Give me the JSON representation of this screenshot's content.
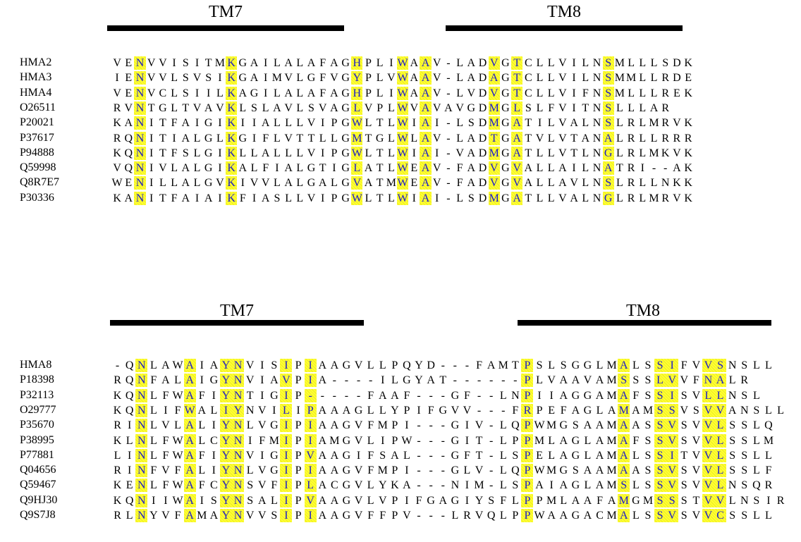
{
  "colors": {
    "highlight": "#ffff33",
    "highlight_text": "#1a1acc",
    "text": "#000000",
    "bar": "#000000"
  },
  "blocks": [
    {
      "tm_labels": [
        "TM7",
        "TM8"
      ],
      "rows": [
        {
          "name": "HMA2",
          "seq": "VENVVISITMKGAILALAFAGHPLIWAAV-LADVGTCLLVILNSMLLLSDK"
        },
        {
          "name": "HMA3",
          "seq": "IENVVLSVSIKGAIMVLGFVGYPLVWAAV-LADAGTCLLVILNSMMLLRDE"
        },
        {
          "name": "HMA4",
          "seq": "VENVCLSIILKAGILALAFAGHPLIWAAV-LVDVGTCLLVIFNSMLLLREK"
        },
        {
          "name": "O26511",
          "seq": "RVNTGLTVAVKLSLAVLSVAGLVPLWVAVAVGDMGLSLFVITNSLLLAR"
        },
        {
          "name": "P20021",
          "seq": "KANITFAIGIKIIALLLVIPGWLTLWIAI-LSDMGATILVALNSLRLMRVK"
        },
        {
          "name": "P37617",
          "seq": "RQNITIALGLKGIFLVTTLLGMTGLWLAV-LADTGATVLVTANALRLLRRR"
        },
        {
          "name": "P94888",
          "seq": "KQNITFSLGIKLLALLLVIPGWLTLWIAI-VADMGATLLVTLNGLRLMKVK"
        },
        {
          "name": "Q59998",
          "seq": "VQNIVLALGIKALFIALGTIGLATLWEAV-FADVGVALLAILNATRI--AK"
        },
        {
          "name": "Q8R7E7",
          "seq": "WENILLALGVKIVVLALGALGVATMWEAV-FADVGVALLAVLNSLRLLNKK"
        },
        {
          "name": "P30336",
          "seq": "KANITFAIAIKFIASLLVIPGWLTLWIAI-LSDMGATLLVALNGLRLMRVK"
        }
      ]
    },
    {
      "tm_labels": [
        "TM7",
        "TM8"
      ],
      "rows": [
        {
          "name": "HMA8",
          "seq": "-QNLAWAIAYNVISIPIAAGVLLPQYD---FAMTPSLSGGLMALSSIFVVSNSLL"
        },
        {
          "name": "P18398",
          "seq": "RQNFALAIGYNVIAVPIA----ILGYAT------PLVAAVAMSSSLVVFNALR"
        },
        {
          "name": "P32113",
          "seq": "KQNLFWAFIYNTIGIP-----FAAF---GF--LNPIIAGGAMAFSSISVLLNSL"
        },
        {
          "name": "O29777",
          "seq": "KQNLIFWALIYNVILIPAAAGLLYPIFGVV---FRPEFAGLAMAMSSVSVVANSLL"
        },
        {
          "name": "P35670",
          "seq": "RINLVLALIYNLVGIPIAAGVFMPI---GIV-LQPWMGSAAMAASSVSVVLSSLQ"
        },
        {
          "name": "P38995",
          "seq": "KLNLFWALCYNIFMIPIAMGVLIPW---GIT-LPPMLAGLAMAFSSVSVVLSSLM"
        },
        {
          "name": "P77881",
          "seq": "LINLFWAFIYNVIGIPVAAGIFSAL---GFT-LSPELAGLAMALSSITVVLSSLL"
        },
        {
          "name": "Q04656",
          "seq": "RINFVFALIYNLVGIPIAAGVFMPI---GLV-LQPWMGSAAMAASSVSVVLSSLF"
        },
        {
          "name": "Q59467",
          "seq": "KENLFWAFCYNSVFIPLACGVLYKA---NIM-LSPAIAGLAMSLSSVSVVLNSQR"
        },
        {
          "name": "Q9HJ30",
          "seq": "KQNIIWAISYNSALIPVAAGVLVPIFGAGIYSFLPPMLAAFAMGMSSSTVVLNSIR"
        },
        {
          "name": "Q9S7J8",
          "seq": "RLNYVFAMAYNVVSIPIAAGVFFPV---LRVQLPPWAAGACMALSSVSVVCSSLL"
        }
      ]
    }
  ]
}
